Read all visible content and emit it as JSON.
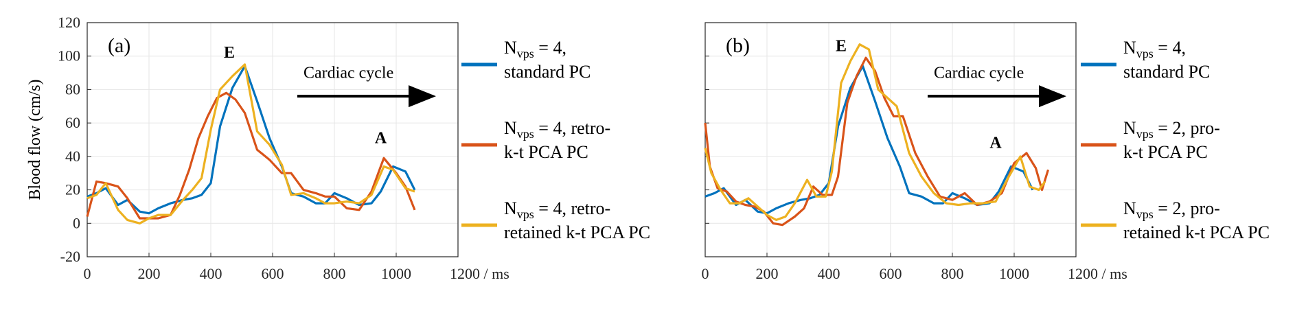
{
  "chart_data": [
    {
      "type": "line",
      "panel_label": "(a)",
      "xlabel": "",
      "ylabel": "Blood flow (cm/s)",
      "x_unit_label": "1200 / ms",
      "xlim": [
        0,
        1200
      ],
      "ylim": [
        -20,
        120
      ],
      "xticks": [
        "0",
        "200",
        "400",
        "600",
        "800",
        "1000"
      ],
      "yticks": [
        "-20",
        "0",
        "20",
        "40",
        "60",
        "80",
        "100",
        "120"
      ],
      "grid": true,
      "annotations": [
        {
          "text": "E",
          "x": 460,
          "y": 99
        },
        {
          "text": "A",
          "x": 950,
          "y": 48
        }
      ],
      "arrow": {
        "text": "Cardiac cycle",
        "x_start": 680,
        "x_end": 1120,
        "y": 76,
        "text_x": 700,
        "text_y": 87
      },
      "series": [
        {
          "name_main": "N",
          "name_sub": "vps",
          "name_rest": " = 4,",
          "name_line2": "standard PC",
          "color": "#0072BD",
          "x": [
            0,
            30,
            60,
            100,
            130,
            170,
            200,
            230,
            270,
            310,
            340,
            370,
            400,
            430,
            470,
            510,
            550,
            590,
            630,
            660,
            700,
            740,
            770,
            800,
            840,
            880,
            920,
            950,
            990,
            1030,
            1060
          ],
          "y": [
            16,
            18,
            21,
            11,
            14,
            7,
            6,
            9,
            12,
            14,
            15,
            17,
            24,
            58,
            81,
            94,
            73,
            51,
            34,
            18,
            16,
            12,
            12,
            18,
            15,
            11,
            12,
            19,
            34,
            31,
            20
          ]
        },
        {
          "name_main": "N",
          "name_sub": "vps",
          "name_rest": " = 4, retro-",
          "name_line2": "k-t PCA PC",
          "color": "#D95319",
          "x": [
            0,
            30,
            60,
            100,
            130,
            170,
            200,
            230,
            270,
            300,
            330,
            360,
            390,
            420,
            450,
            480,
            510,
            550,
            590,
            630,
            660,
            700,
            740,
            770,
            800,
            840,
            880,
            920,
            960,
            1000,
            1030,
            1060
          ],
          "y": [
            4,
            25,
            24,
            22,
            15,
            3,
            3,
            3,
            5,
            17,
            32,
            51,
            64,
            75,
            78,
            74,
            66,
            44,
            38,
            30,
            30,
            20,
            18,
            16,
            16,
            9,
            8,
            19,
            39,
            30,
            22,
            8
          ]
        },
        {
          "name_main": "N",
          "name_sub": "vps",
          "name_rest": " = 4, retro-",
          "name_line2": "retained k-t PCA PC",
          "color": "#EDB120",
          "x": [
            0,
            30,
            60,
            100,
            130,
            170,
            200,
            230,
            270,
            310,
            340,
            370,
            400,
            430,
            470,
            510,
            550,
            590,
            630,
            660,
            700,
            740,
            770,
            800,
            840,
            880,
            920,
            960,
            990,
            1030,
            1060
          ],
          "y": [
            15,
            17,
            24,
            8,
            2,
            0,
            3,
            5,
            5,
            14,
            20,
            27,
            56,
            80,
            88,
            95,
            55,
            47,
            35,
            17,
            18,
            15,
            12,
            12,
            13,
            12,
            17,
            34,
            32,
            21,
            19
          ]
        }
      ]
    },
    {
      "type": "line",
      "panel_label": "(b)",
      "xlabel": "",
      "ylabel": "",
      "x_unit_label": "1200 / ms",
      "xlim": [
        0,
        1200
      ],
      "ylim": [
        -20,
        120
      ],
      "xticks": [
        "0",
        "200",
        "400",
        "600",
        "800",
        "1000"
      ],
      "yticks": [],
      "grid": true,
      "annotations": [
        {
          "text": "E",
          "x": 440,
          "y": 103
        },
        {
          "text": "A",
          "x": 940,
          "y": 45
        }
      ],
      "arrow": {
        "text": "Cardiac cycle",
        "x_start": 720,
        "x_end": 1160,
        "y": 76,
        "text_x": 740,
        "text_y": 87
      },
      "series": [
        {
          "name_main": "N",
          "name_sub": "vps",
          "name_rest": " = 4,",
          "name_line2": "standard PC",
          "color": "#0072BD",
          "x": [
            0,
            30,
            60,
            100,
            130,
            170,
            200,
            230,
            270,
            310,
            340,
            370,
            400,
            430,
            470,
            510,
            550,
            590,
            630,
            660,
            700,
            740,
            770,
            800,
            840,
            880,
            920,
            950,
            990,
            1030,
            1060
          ],
          "y": [
            16,
            18,
            21,
            11,
            14,
            7,
            6,
            9,
            12,
            14,
            15,
            17,
            24,
            58,
            81,
            94,
            73,
            51,
            34,
            18,
            16,
            12,
            12,
            18,
            15,
            11,
            12,
            19,
            34,
            31,
            20
          ]
        },
        {
          "name_main": "N",
          "name_sub": "vps",
          "name_rest": " = 2, pro-",
          "name_line2": "k-t PCA PC",
          "color": "#D95319",
          "x": [
            0,
            15,
            40,
            70,
            100,
            130,
            160,
            190,
            220,
            250,
            290,
            320,
            350,
            380,
            410,
            430,
            460,
            490,
            520,
            550,
            580,
            610,
            640,
            680,
            720,
            760,
            800,
            840,
            880,
            920,
            960,
            1000,
            1040,
            1070,
            1090,
            1110
          ],
          "y": [
            60,
            34,
            21,
            19,
            13,
            11,
            10,
            7,
            0,
            -1,
            4,
            9,
            22,
            17,
            17,
            28,
            72,
            88,
            99,
            91,
            75,
            64,
            64,
            42,
            28,
            16,
            14,
            18,
            11,
            13,
            18,
            36,
            42,
            33,
            20,
            32
          ]
        },
        {
          "name_main": "N",
          "name_sub": "vps",
          "name_rest": " = 2, pro-",
          "name_line2": "retained k-t PCA PC",
          "color": "#EDB120",
          "x": [
            0,
            20,
            50,
            80,
            110,
            140,
            170,
            200,
            230,
            260,
            290,
            330,
            360,
            390,
            410,
            440,
            470,
            500,
            530,
            560,
            590,
            620,
            660,
            700,
            740,
            780,
            820,
            860,
            900,
            940,
            980,
            1020,
            1050,
            1080,
            1100
          ],
          "y": [
            45,
            30,
            20,
            12,
            12,
            15,
            10,
            5,
            2,
            4,
            12,
            26,
            16,
            16,
            31,
            84,
            97,
            107,
            104,
            80,
            75,
            70,
            42,
            28,
            18,
            12,
            11,
            12,
            12,
            13,
            27,
            40,
            22,
            20,
            25
          ]
        }
      ]
    }
  ]
}
